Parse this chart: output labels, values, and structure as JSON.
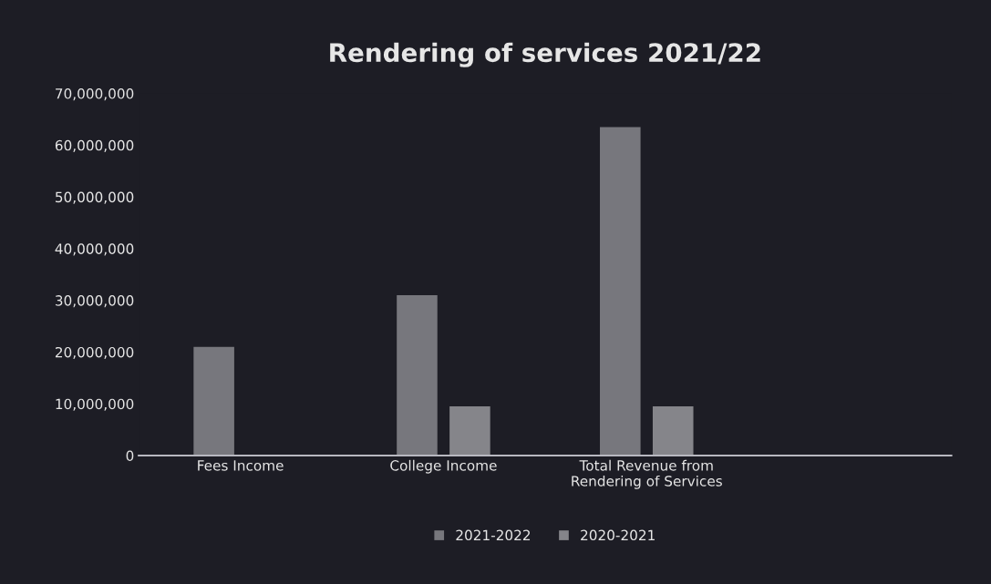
{
  "chart_data": {
    "type": "bar",
    "title": "Rendering of services 2021/22",
    "categories": [
      "Fees Income",
      "College Income",
      "Total Revenue from\nRendering of Services",
      null
    ],
    "series": [
      {
        "name": "2021-2022",
        "color": "#77777d",
        "values": [
          21000000,
          31000000,
          63500000,
          null
        ]
      },
      {
        "name": "2020-2021",
        "color": "#85858a",
        "values": [
          null,
          9500000,
          9500000,
          null
        ]
      }
    ],
    "ylim": [
      0,
      70000000
    ],
    "yticks": [
      {
        "value": 0,
        "label": "0"
      },
      {
        "value": 10000000,
        "label": "10,000,000"
      },
      {
        "value": 20000000,
        "label": "20,000,000"
      },
      {
        "value": 30000000,
        "label": "30,000,000"
      },
      {
        "value": 40000000,
        "label": "40,000,000"
      },
      {
        "value": 50000000,
        "label": "50,000,000"
      },
      {
        "value": 60000000,
        "label": "60,000,000"
      },
      {
        "value": 70000000,
        "label": "70,000,000"
      }
    ],
    "legend": "bottom"
  }
}
